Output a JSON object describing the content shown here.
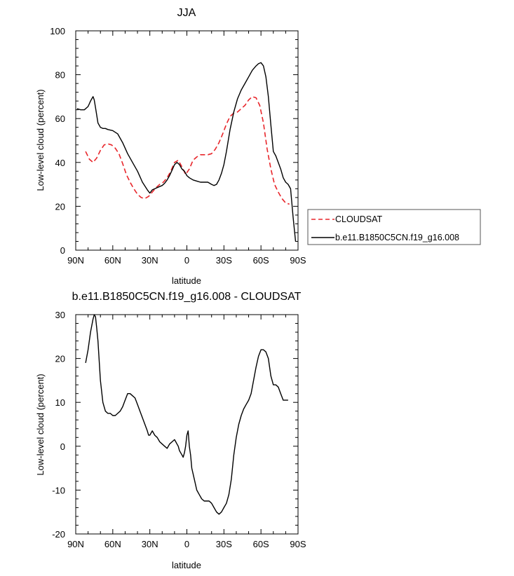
{
  "chart_data": [
    {
      "type": "line",
      "title": "JJA",
      "xlabel": "latitude",
      "ylabel": "Low-level cloud (percent)",
      "xlim": [
        90,
        -90
      ],
      "ylim": [
        0,
        100
      ],
      "x_ticks": [
        90,
        60,
        30,
        0,
        -30,
        -60,
        -90
      ],
      "x_tick_labels": [
        "90N",
        "60N",
        "30N",
        "0",
        "30S",
        "60S",
        "90S"
      ],
      "y_ticks": [
        0,
        20,
        40,
        60,
        80,
        100
      ],
      "y_tick_labels": [
        "0",
        "20",
        "40",
        "60",
        "80",
        "100"
      ],
      "legend_position": "right",
      "grid": false,
      "series": [
        {
          "name": "CLOUDSAT",
          "color": "#e8262b",
          "dash": "dashed",
          "x": [
            82,
            79,
            76,
            73,
            70,
            67,
            64,
            61,
            58,
            55,
            52,
            49,
            46,
            43,
            40,
            37,
            34,
            31,
            28,
            25,
            22,
            19,
            16,
            13,
            10,
            7,
            4,
            1,
            -2,
            -5,
            -8,
            -11,
            -14,
            -17,
            -20,
            -23,
            -26,
            -29,
            -32,
            -35,
            -38,
            -41,
            -44,
            -47,
            -50,
            -53,
            -56,
            -59,
            -62,
            -65,
            -68,
            -71,
            -74,
            -77,
            -80,
            -83
          ],
          "y": [
            45,
            41.5,
            40,
            42,
            45.5,
            48,
            48.5,
            48,
            46.5,
            44,
            39.5,
            34.5,
            31,
            28,
            25.5,
            24,
            23.5,
            24.5,
            26.5,
            28.5,
            30,
            31,
            33,
            36,
            40,
            41,
            38,
            34.5,
            37,
            41,
            42.5,
            43.5,
            43.5,
            43.5,
            44,
            46,
            49,
            53,
            57.5,
            61,
            62.5,
            63,
            64.5,
            66,
            68.5,
            70,
            69.5,
            66,
            58,
            46,
            37,
            30,
            26.5,
            23.5,
            21.5,
            21
          ]
        },
        {
          "name": "b.e11.B1850C5CN.f19_g16.008",
          "color": "#000000",
          "dash": "solid",
          "x": [
            89,
            86,
            83,
            80,
            78,
            77,
            76,
            75,
            74,
            72,
            70,
            68,
            66,
            64,
            60,
            56,
            52,
            48,
            44,
            40,
            36,
            32,
            30,
            28,
            26,
            24,
            22,
            20,
            18,
            16,
            14,
            12,
            10,
            8,
            6,
            4,
            2,
            0,
            -2,
            -5,
            -8,
            -11,
            -14,
            -17,
            -20,
            -22,
            -24,
            -26,
            -28,
            -30,
            -32,
            -35,
            -38,
            -41,
            -44,
            -47,
            -50,
            -53,
            -56,
            -58,
            -60,
            -62,
            -64,
            -66,
            -68,
            -70,
            -72,
            -74,
            -76,
            -78,
            -80,
            -82,
            -84,
            -86,
            -88
          ],
          "y": [
            64.5,
            64,
            64,
            65.5,
            68,
            69,
            70,
            68.5,
            65,
            58,
            56,
            55.5,
            55.5,
            55,
            54.5,
            53,
            49,
            44,
            40,
            36,
            31,
            27.5,
            26,
            27.5,
            28,
            28.5,
            29,
            29.5,
            30.5,
            32,
            34,
            36.5,
            39,
            40,
            39,
            37,
            36,
            34,
            33,
            32,
            31.5,
            31,
            31,
            31,
            30,
            29.5,
            30,
            32,
            35,
            39,
            45,
            55,
            63,
            69,
            73,
            76,
            79,
            82,
            84,
            85,
            85.5,
            84,
            79,
            70,
            57,
            45,
            43,
            40,
            37,
            33,
            31,
            30,
            28,
            15,
            4
          ]
        }
      ]
    },
    {
      "type": "line",
      "title": "b.e11.B1850C5CN.f19_g16.008 - CLOUDSAT",
      "xlabel": "latitude",
      "ylabel": "Low-level cloud (percent)",
      "xlim": [
        90,
        -90
      ],
      "ylim": [
        -20,
        30
      ],
      "x_ticks": [
        90,
        60,
        30,
        0,
        -30,
        -60,
        -90
      ],
      "x_tick_labels": [
        "90N",
        "60N",
        "30N",
        "0",
        "30S",
        "60S",
        "90S"
      ],
      "y_ticks": [
        -20,
        -10,
        0,
        10,
        20,
        30
      ],
      "y_tick_labels": [
        "-20",
        "-10",
        "0",
        "10",
        "20",
        "30"
      ],
      "grid": false,
      "series": [
        {
          "color": "#000000",
          "dash": "solid",
          "x": [
            82,
            80,
            78,
            76,
            75,
            74,
            73,
            72,
            70,
            68,
            66,
            64,
            62,
            60,
            58,
            56,
            54,
            52,
            50,
            48,
            46,
            44,
            42,
            40,
            38,
            36,
            34,
            32,
            31,
            30,
            29,
            28,
            26,
            24,
            22,
            20,
            18,
            16,
            14,
            12,
            10,
            9,
            8,
            7,
            6,
            5,
            4,
            3,
            2,
            1,
            0,
            -1,
            -2,
            -3,
            -4,
            -6,
            -8,
            -10,
            -12,
            -14,
            -16,
            -18,
            -20,
            -22,
            -24,
            -26,
            -28,
            -30,
            -32,
            -34,
            -36,
            -38,
            -40,
            -42,
            -44,
            -46,
            -48,
            -50,
            -52,
            -54,
            -56,
            -58,
            -60,
            -62,
            -64,
            -66,
            -68,
            -70,
            -72,
            -74,
            -76,
            -78,
            -80,
            -82
          ],
          "y": [
            19,
            22,
            26,
            29,
            30,
            29.5,
            27,
            24,
            15,
            10,
            8,
            7.5,
            7.5,
            7,
            7,
            7.5,
            8,
            9,
            10.5,
            12,
            12,
            11.5,
            11,
            9.5,
            8,
            6.5,
            5,
            3.5,
            2.5,
            2.5,
            3,
            3.5,
            2.5,
            2,
            1,
            0.5,
            0,
            -0.5,
            0.5,
            1,
            1.5,
            1,
            0.5,
            0,
            -1,
            -1.5,
            -2,
            -2.5,
            -1.5,
            0,
            2.5,
            3.5,
            0,
            -2,
            -5,
            -7.5,
            -10,
            -11,
            -12,
            -12.5,
            -12.5,
            -12.5,
            -13,
            -14,
            -15,
            -15.5,
            -15,
            -14,
            -13,
            -11,
            -7.5,
            -2,
            2,
            5,
            7,
            8.5,
            9.5,
            10.5,
            12,
            15,
            18,
            20.5,
            22,
            22,
            21.5,
            20,
            16,
            14,
            14,
            13.5,
            12,
            10.5,
            10.5,
            10.5
          ]
        }
      ]
    }
  ]
}
